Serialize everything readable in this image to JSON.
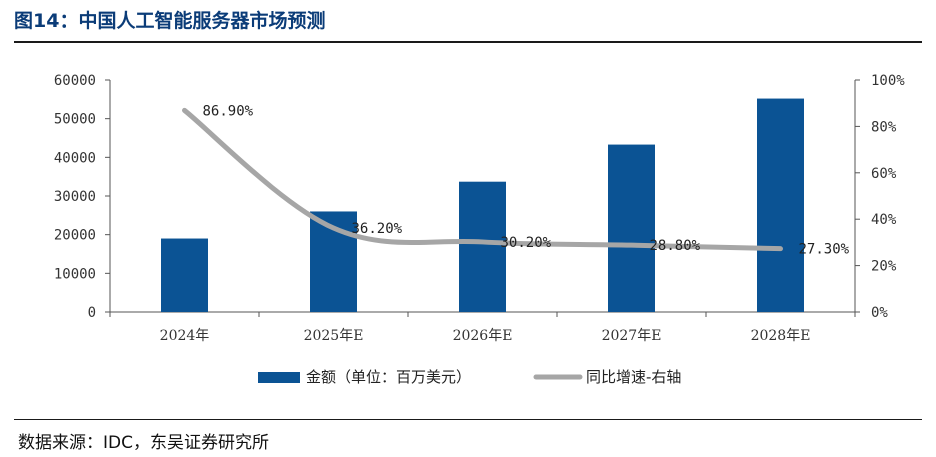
{
  "title": "图14：中国人工智能服务器市场预测",
  "source": "数据来源：IDC，东吴证券研究所",
  "chart_data": {
    "type": "bar",
    "categories": [
      "2024年",
      "2025年E",
      "2026年E",
      "2027年E",
      "2028年E"
    ],
    "series": [
      {
        "name": "金额（单位：百万美元）",
        "type": "bar",
        "axis": "left",
        "color": "#0b5394",
        "values": [
          19000,
          26000,
          33700,
          43300,
          55200
        ]
      },
      {
        "name": "同比增速-右轴",
        "type": "line",
        "axis": "right",
        "color": "#a6a6a6",
        "values": [
          86.9,
          36.2,
          30.2,
          28.8,
          27.3
        ],
        "labels": [
          "86.90%",
          "36.20%",
          "30.20%",
          "28.80%",
          "27.30%"
        ]
      }
    ],
    "y_left": {
      "ylim": [
        0,
        60000
      ],
      "ticks": [
        "0",
        "10000",
        "20000",
        "30000",
        "40000",
        "50000",
        "60000"
      ]
    },
    "y_right": {
      "ylim": [
        0,
        100
      ],
      "ticks": [
        "0%",
        "20%",
        "40%",
        "60%",
        "80%",
        "100%"
      ]
    },
    "legend_position": "bottom",
    "grid": false
  }
}
